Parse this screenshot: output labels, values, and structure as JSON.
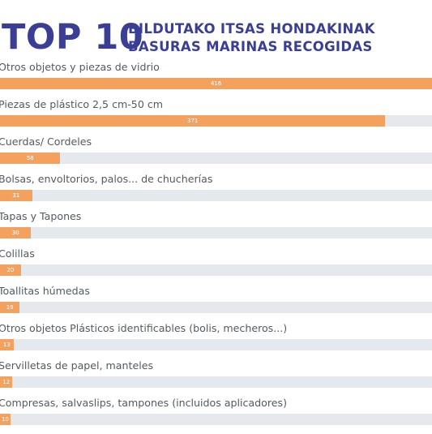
{
  "colors": {
    "title": "#3a3f95",
    "bar": "#f4a15e",
    "track": "#e5e8ec",
    "label": "#555a60"
  },
  "header": {
    "big": "TOP 10",
    "line1": "BILDUTAKO ITSAS HONDAKINAK",
    "line2": "BASURAS MARINAS RECOGIDAS"
  },
  "chart_data": {
    "type": "bar",
    "orientation": "horizontal",
    "title": "TOP 10",
    "subtitle": "BILDUTAKO ITSAS HONDAKINAK / BASURAS MARINAS RECOGIDAS",
    "categories": [
      "Otros objetos y piezas de vidrio",
      "Piezas de plástico 2,5 cm-50 cm",
      "Cuerdas/ Cordeles",
      "Bolsas, envoltorios, palos... de chucherías",
      "Tapas y Tapones",
      "Colillas",
      "Toallitas húmedas",
      "Otros objetos Plásticos identificables (bolis, mecheros...)",
      "Servilletas de papel, manteles",
      "Compresas, salvaslips, tampones (incluidos aplicadores)"
    ],
    "values": [
      416,
      371,
      58,
      31,
      30,
      20,
      19,
      13,
      12,
      10
    ],
    "xlim": [
      0,
      416
    ],
    "grid": false,
    "legend": "none"
  }
}
